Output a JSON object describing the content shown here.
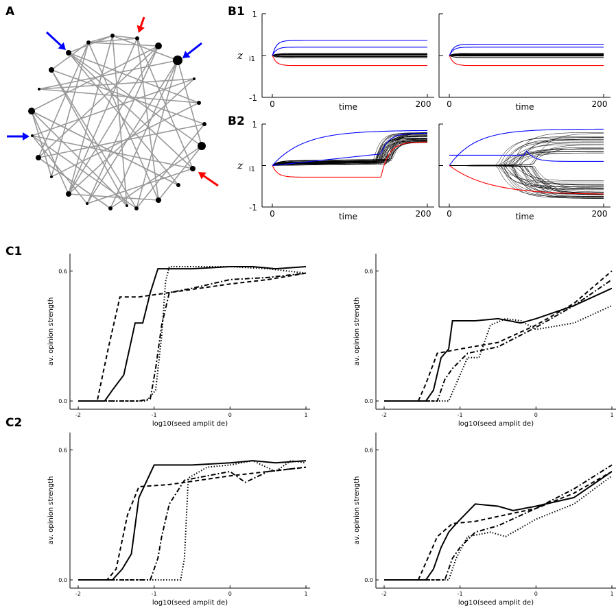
{
  "panels": {
    "a": "A",
    "b1": "B1",
    "b2": "B2",
    "c1": "C1",
    "c2": "C2"
  },
  "colors": {
    "seed_positive": "#0000ff",
    "seed_negative": "#ff0000",
    "edge": "#999999",
    "node": "#000000"
  },
  "network": {
    "nodes": 30,
    "arrows": [
      "blue",
      "red",
      "blue",
      "blue",
      "red"
    ]
  },
  "b_axes": {
    "ylabel": "z",
    "ylabel_sub": "i1",
    "xlabel": "time",
    "y_ticks": [
      "1",
      "-1"
    ],
    "x_ticks": [
      "0",
      "200"
    ]
  },
  "c_axes": {
    "xlabel": "log10(seed amplit  de)",
    "ylabel": "av. opinion strength",
    "x_ticks": [
      "-2",
      "-1",
      "0",
      "1"
    ],
    "y_ticks": [
      "0.0",
      "0.6"
    ]
  },
  "chart_data": [
    {
      "panel": "C1-left",
      "type": "line",
      "xlim": [
        -2,
        1
      ],
      "ylim": [
        0,
        0.68
      ],
      "series": [
        {
          "style": "solid",
          "x": [
            -2,
            -1.65,
            -1.55,
            -1.4,
            -1.25,
            -1.15,
            -1.05,
            -0.95,
            -0.5,
            0,
            0.3,
            0.6,
            1
          ],
          "y": [
            0,
            0,
            0.05,
            0.12,
            0.36,
            0.36,
            0.5,
            0.61,
            0.61,
            0.62,
            0.62,
            0.61,
            0.62
          ]
        },
        {
          "style": "dashed",
          "x": [
            -2,
            -1.75,
            -1.6,
            -1.45,
            -1.2,
            -0.8,
            -0.4,
            0,
            0.5,
            1
          ],
          "y": [
            0,
            0,
            0.25,
            0.48,
            0.48,
            0.5,
            0.52,
            0.54,
            0.56,
            0.59
          ]
        },
        {
          "style": "dashdot",
          "x": [
            -2,
            -1.2,
            -1.05,
            -0.98,
            -0.9,
            -0.8,
            -0.5,
            0,
            0.5,
            1
          ],
          "y": [
            0,
            0,
            0.01,
            0.15,
            0.35,
            0.5,
            0.52,
            0.56,
            0.57,
            0.59
          ]
        },
        {
          "style": "dotted",
          "x": [
            -2,
            -1.1,
            -0.98,
            -0.9,
            -0.85,
            -0.8,
            -0.5,
            0,
            0.5,
            1
          ],
          "y": [
            0,
            0,
            0.05,
            0.3,
            0.55,
            0.62,
            0.62,
            0.62,
            0.61,
            0.59
          ]
        }
      ]
    },
    {
      "panel": "C1-right",
      "type": "line",
      "xlim": [
        -2,
        1
      ],
      "ylim": [
        0,
        0.68
      ],
      "series": [
        {
          "style": "solid",
          "x": [
            -2,
            -1.45,
            -1.35,
            -1.25,
            -1.15,
            -1.1,
            -0.8,
            -0.5,
            -0.2,
            0,
            0.5,
            1
          ],
          "y": [
            0,
            0,
            0.05,
            0.2,
            0.24,
            0.37,
            0.37,
            0.38,
            0.36,
            0.38,
            0.44,
            0.52
          ]
        },
        {
          "style": "dashed",
          "x": [
            -2,
            -1.55,
            -1.45,
            -1.3,
            -1.0,
            -0.5,
            0,
            0.5,
            1
          ],
          "y": [
            0,
            0,
            0.08,
            0.22,
            0.24,
            0.27,
            0.35,
            0.45,
            0.6
          ]
        },
        {
          "style": "dashdot",
          "x": [
            -2,
            -1.3,
            -1.2,
            -1.1,
            -0.9,
            -0.5,
            0,
            0.5,
            1
          ],
          "y": [
            0,
            0,
            0.1,
            0.15,
            0.22,
            0.25,
            0.34,
            0.44,
            0.56
          ]
        },
        {
          "style": "dotted",
          "x": [
            -2,
            -1.15,
            -1.05,
            -0.9,
            -0.75,
            -0.6,
            -0.4,
            -0.2,
            0,
            0.5,
            1
          ],
          "y": [
            0,
            0,
            0.08,
            0.2,
            0.2,
            0.35,
            0.38,
            0.37,
            0.33,
            0.36,
            0.44
          ]
        }
      ]
    },
    {
      "panel": "C2-left",
      "type": "line",
      "xlim": [
        -2,
        1
      ],
      "ylim": [
        0,
        0.68
      ],
      "series": [
        {
          "style": "solid",
          "x": [
            -2,
            -1.55,
            -1.42,
            -1.3,
            -1.2,
            -1.0,
            -0.5,
            0,
            0.3,
            0.6,
            1
          ],
          "y": [
            0,
            0,
            0.05,
            0.12,
            0.38,
            0.53,
            0.53,
            0.54,
            0.55,
            0.54,
            0.55
          ]
        },
        {
          "style": "dashed",
          "x": [
            -2,
            -1.62,
            -1.5,
            -1.35,
            -1.2,
            -0.8,
            -0.4,
            0,
            0.5,
            1
          ],
          "y": [
            0,
            0,
            0.05,
            0.3,
            0.43,
            0.44,
            0.46,
            0.48,
            0.5,
            0.52
          ]
        },
        {
          "style": "dashdot",
          "x": [
            -2,
            -1.05,
            -0.95,
            -0.9,
            -0.8,
            -0.6,
            -0.3,
            0,
            0.2,
            0.5,
            1
          ],
          "y": [
            0,
            0,
            0.1,
            0.2,
            0.35,
            0.46,
            0.48,
            0.5,
            0.45,
            0.5,
            0.52
          ]
        },
        {
          "style": "dotted",
          "x": [
            -2,
            -0.65,
            -0.6,
            -0.55,
            -0.5,
            -0.3,
            0,
            0.3,
            0.6,
            0.8,
            1
          ],
          "y": [
            0,
            0,
            0.1,
            0.47,
            0.48,
            0.52,
            0.53,
            0.55,
            0.5,
            0.55,
            0.54
          ]
        }
      ]
    },
    {
      "panel": "C2-right",
      "type": "line",
      "xlim": [
        -2,
        1
      ],
      "ylim": [
        0,
        0.68
      ],
      "series": [
        {
          "style": "solid",
          "x": [
            -2,
            -1.45,
            -1.35,
            -1.25,
            -1.15,
            -1.05,
            -0.8,
            -0.5,
            -0.3,
            0,
            0.5,
            1
          ],
          "y": [
            0,
            0,
            0.05,
            0.15,
            0.22,
            0.26,
            0.35,
            0.34,
            0.32,
            0.34,
            0.38,
            0.5
          ]
        },
        {
          "style": "dashed",
          "x": [
            -2,
            -1.55,
            -1.45,
            -1.3,
            -1.1,
            -0.8,
            -0.4,
            0,
            0.5,
            1
          ],
          "y": [
            0,
            0,
            0.08,
            0.2,
            0.26,
            0.27,
            0.3,
            0.33,
            0.4,
            0.5
          ]
        },
        {
          "style": "dashdot",
          "x": [
            -2,
            -1.2,
            -1.1,
            -1.0,
            -0.8,
            -0.5,
            0,
            0.5,
            1
          ],
          "y": [
            0,
            0,
            0.1,
            0.15,
            0.22,
            0.25,
            0.33,
            0.42,
            0.53
          ]
        },
        {
          "style": "dotted",
          "x": [
            -2,
            -1.15,
            -1.05,
            -0.9,
            -0.6,
            -0.4,
            0,
            0.5,
            1
          ],
          "y": [
            0,
            0,
            0.1,
            0.2,
            0.22,
            0.2,
            0.28,
            0.35,
            0.48
          ]
        }
      ]
    }
  ]
}
